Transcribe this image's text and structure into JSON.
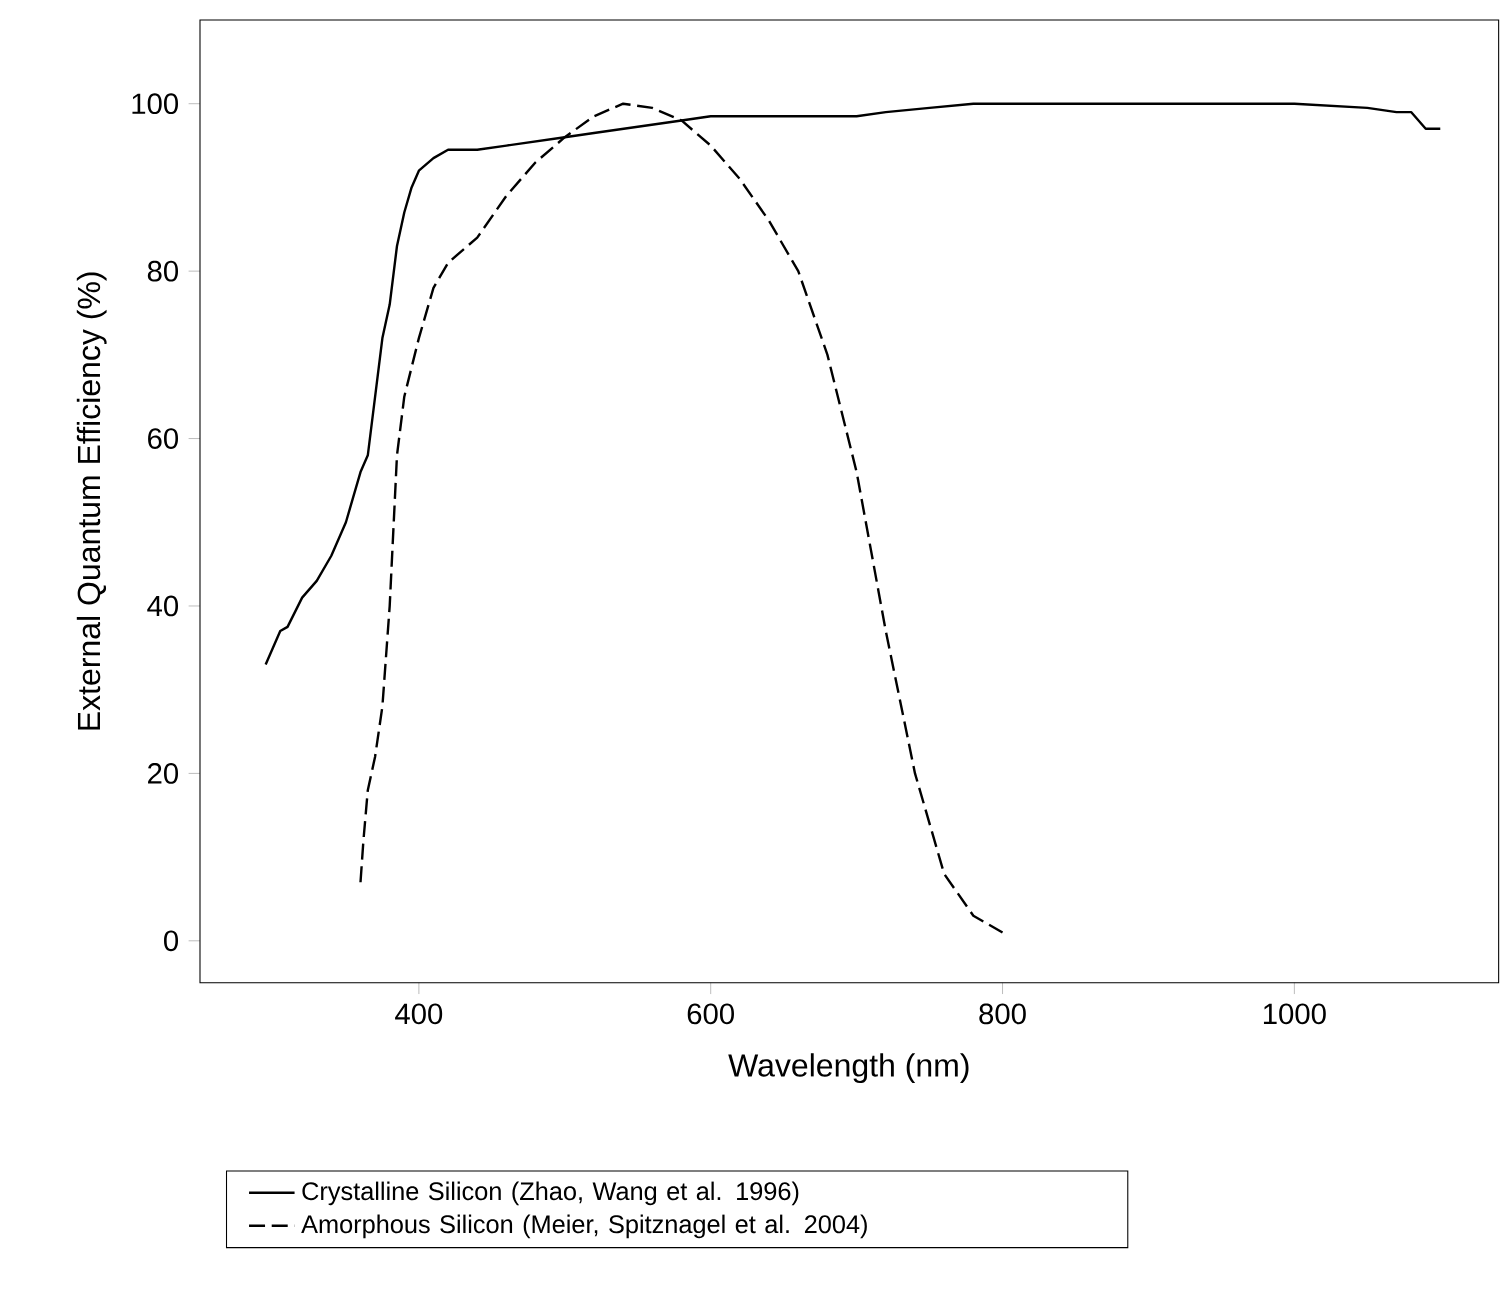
{
  "chart_data": {
    "type": "line",
    "xlabel": "Wavelength (nm)",
    "ylabel": "External Quantum Efficiency (%)",
    "xlim": [
      250,
      1140
    ],
    "ylim": [
      -5,
      110
    ],
    "xticks": [
      400,
      600,
      800,
      1000
    ],
    "yticks": [
      0,
      20,
      40,
      60,
      80,
      100
    ],
    "legend": "bottom",
    "series": [
      {
        "name": "Crystalline Silicon (Zhao, Wang et al. 1996)",
        "color": "#000000",
        "line_style": "solid",
        "x": [
          295,
          300,
          305,
          310,
          320,
          330,
          340,
          350,
          355,
          360,
          365,
          370,
          375,
          380,
          385,
          390,
          395,
          400,
          410,
          420,
          440,
          460,
          480,
          500,
          520,
          540,
          560,
          580,
          600,
          650,
          700,
          720,
          750,
          780,
          800,
          900,
          1000,
          1050,
          1070,
          1080,
          1090,
          1100
        ],
        "values": [
          33,
          35,
          37,
          37.5,
          41,
          43,
          46,
          50,
          53,
          56,
          58,
          65,
          72,
          76,
          83,
          87,
          90,
          92,
          93.5,
          94.5,
          94.5,
          95,
          95.5,
          96,
          96.5,
          97,
          97.5,
          98,
          98.5,
          98.5,
          98.5,
          99,
          99.5,
          100,
          100,
          100,
          100,
          99.5,
          99,
          99,
          97,
          97
        ]
      },
      {
        "name": "Amorphous Silicon (Meier, Spitznagel et al. 2004)",
        "color": "#000000",
        "line_style": "dashed",
        "x": [
          360,
          362,
          365,
          370,
          375,
          380,
          385,
          390,
          400,
          410,
          420,
          440,
          460,
          480,
          500,
          520,
          540,
          560,
          580,
          600,
          620,
          640,
          660,
          680,
          700,
          720,
          740,
          760,
          780,
          790,
          800
        ],
        "values": [
          7,
          12,
          18,
          22,
          28,
          40,
          58,
          65,
          72,
          78,
          81,
          84,
          89,
          93,
          96,
          98.5,
          100,
          99.5,
          98,
          95,
          91,
          86,
          80,
          70,
          56,
          37,
          20,
          8,
          3,
          2,
          1
        ]
      }
    ]
  }
}
